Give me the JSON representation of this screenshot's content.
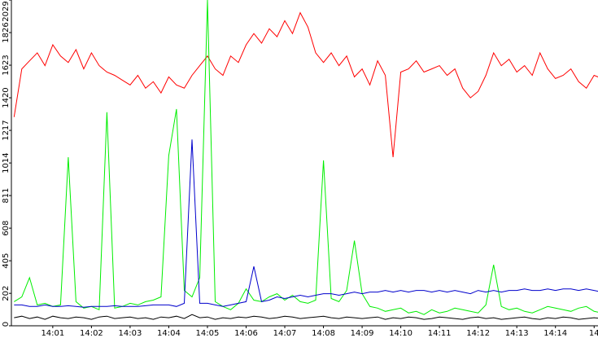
{
  "chart_data": {
    "type": "line",
    "x": [
      0,
      0.2,
      0.4,
      0.6,
      0.8,
      1,
      1.2,
      1.4,
      1.6,
      1.8,
      2,
      2.2,
      2.4,
      2.6,
      2.8,
      3,
      3.2,
      3.4,
      3.6,
      3.8,
      4,
      4.2,
      4.4,
      4.6,
      4.8,
      5,
      5.2,
      5.4,
      5.6,
      5.8,
      6,
      6.2,
      6.4,
      6.6,
      6.8,
      7,
      7.2,
      7.4,
      7.6,
      7.8,
      8,
      8.2,
      8.4,
      8.6,
      8.8,
      9,
      9.2,
      9.4,
      9.6,
      9.8,
      10,
      10.2,
      10.4,
      10.6,
      10.8,
      11,
      11.2,
      11.4,
      11.6,
      11.8,
      12,
      12.2,
      12.4,
      12.6,
      12.8,
      13,
      13.2,
      13.4,
      13.6,
      13.8,
      14,
      14.2,
      14.4,
      14.6,
      14.8,
      15,
      15.2
    ],
    "series": [
      {
        "color": "#ff0000",
        "values": [
          1300,
          1600,
          1650,
          1700,
          1620,
          1750,
          1680,
          1640,
          1720,
          1600,
          1700,
          1620,
          1580,
          1560,
          1530,
          1500,
          1560,
          1480,
          1520,
          1450,
          1550,
          1500,
          1480,
          1560,
          1620,
          1680,
          1600,
          1560,
          1680,
          1640,
          1750,
          1820,
          1760,
          1850,
          1800,
          1900,
          1820,
          1950,
          1860,
          1700,
          1640,
          1700,
          1620,
          1680,
          1550,
          1600,
          1500,
          1650,
          1560,
          1050,
          1580,
          1600,
          1650,
          1580,
          1600,
          1620,
          1560,
          1600,
          1480,
          1420,
          1460,
          1560,
          1700,
          1620,
          1660,
          1580,
          1620,
          1560,
          1700,
          1600,
          1540,
          1560,
          1600,
          1520,
          1480,
          1560,
          1540
        ]
      },
      {
        "color": "#00ee00",
        "values": [
          150,
          180,
          300,
          130,
          140,
          120,
          130,
          1050,
          150,
          110,
          120,
          100,
          1330,
          110,
          120,
          140,
          130,
          150,
          160,
          180,
          1060,
          1350,
          220,
          180,
          300,
          2029,
          150,
          120,
          100,
          140,
          230,
          160,
          150,
          180,
          200,
          160,
          190,
          150,
          140,
          160,
          1030,
          170,
          150,
          220,
          530,
          200,
          120,
          110,
          90,
          100,
          110,
          80,
          90,
          70,
          100,
          80,
          90,
          110,
          100,
          90,
          80,
          130,
          380,
          120,
          100,
          110,
          90,
          80,
          100,
          120,
          110,
          100,
          90,
          110,
          120,
          90,
          80
        ]
      },
      {
        "color": "#0000cc",
        "values": [
          130,
          130,
          120,
          120,
          130,
          120,
          120,
          125,
          120,
          115,
          120,
          120,
          120,
          125,
          120,
          120,
          120,
          125,
          130,
          130,
          130,
          120,
          140,
          1160,
          140,
          140,
          130,
          120,
          130,
          140,
          150,
          370,
          150,
          160,
          180,
          170,
          180,
          190,
          180,
          190,
          200,
          200,
          190,
          200,
          210,
          200,
          210,
          210,
          220,
          210,
          220,
          210,
          220,
          220,
          210,
          220,
          210,
          220,
          210,
          200,
          220,
          210,
          220,
          210,
          220,
          220,
          230,
          220,
          220,
          230,
          220,
          230,
          230,
          220,
          230,
          220,
          210
        ]
      },
      {
        "color": "#000000",
        "values": [
          50,
          60,
          45,
          55,
          40,
          60,
          50,
          45,
          55,
          50,
          40,
          55,
          60,
          45,
          50,
          55,
          45,
          50,
          40,
          55,
          50,
          60,
          45,
          70,
          50,
          55,
          40,
          50,
          45,
          55,
          50,
          60,
          55,
          45,
          50,
          60,
          55,
          45,
          50,
          55,
          60,
          50,
          45,
          55,
          50,
          45,
          50,
          55,
          40,
          50,
          45,
          55,
          50,
          40,
          45,
          55,
          50,
          45,
          40,
          50,
          55,
          45,
          50,
          40,
          45,
          50,
          55,
          45,
          40,
          50,
          45,
          55,
          50,
          40,
          45,
          50,
          45
        ]
      }
    ],
    "xlim": [
      -0.07,
      15.1
    ],
    "xticks": [
      {
        "value": 1,
        "label": "14:01"
      },
      {
        "value": 2,
        "label": "14:02"
      },
      {
        "value": 3,
        "label": "14:03"
      },
      {
        "value": 4,
        "label": "14:04"
      },
      {
        "value": 5,
        "label": "14:05"
      },
      {
        "value": 6,
        "label": "14:06"
      },
      {
        "value": 7,
        "label": "14:07"
      },
      {
        "value": 8,
        "label": "14:08"
      },
      {
        "value": 9,
        "label": "14:09"
      },
      {
        "value": 10,
        "label": "14:10"
      },
      {
        "value": 11,
        "label": "14:11"
      },
      {
        "value": 12,
        "label": "14:12"
      },
      {
        "value": 13,
        "label": "14:13"
      },
      {
        "value": 14,
        "label": "14:14"
      },
      {
        "value": 15,
        "label": "14"
      }
    ],
    "ylim": [
      0,
      2029
    ],
    "yticks": [
      0,
      202,
      405,
      608,
      811,
      1014,
      1217,
      1420,
      1623,
      1826,
      2029
    ]
  }
}
